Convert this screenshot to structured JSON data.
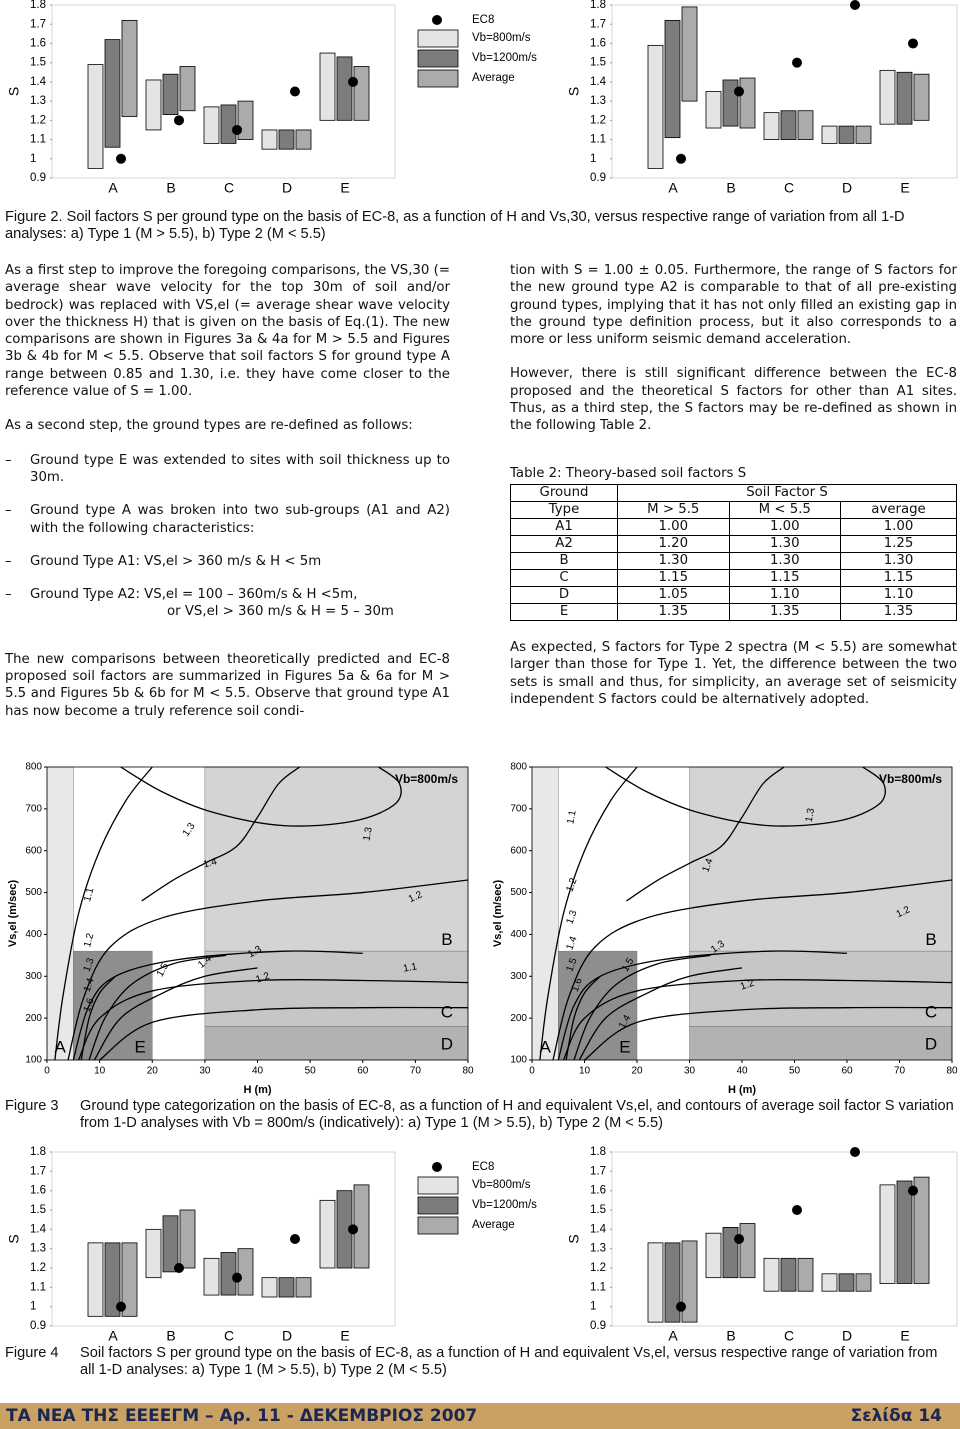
{
  "chart_data": [
    {
      "type": "range_bar",
      "ylabel": "S",
      "categories": [
        "A",
        "B",
        "C",
        "D",
        "E"
      ],
      "ylim": [
        0.9,
        1.8
      ],
      "yticks": [
        0.9,
        1,
        1.1,
        1.2,
        1.3,
        1.4,
        1.5,
        1.6,
        1.7,
        1.8
      ],
      "points": {
        "name": "EC8",
        "color": "#000000",
        "values": [
          1.0,
          1.2,
          1.15,
          1.35,
          1.4
        ]
      },
      "series": [
        {
          "name": "Vb=800m/s",
          "color": "#e4e4e4",
          "values": [
            [
              0.95,
              1.49
            ],
            [
              1.15,
              1.41
            ],
            [
              1.08,
              1.27
            ],
            [
              1.05,
              1.15
            ],
            [
              1.2,
              1.55
            ]
          ]
        },
        {
          "name": "Vb=1200m/s",
          "color": "#7c7c7c",
          "values": [
            [
              1.06,
              1.62
            ],
            [
              1.23,
              1.44
            ],
            [
              1.08,
              1.28
            ],
            [
              1.05,
              1.15
            ],
            [
              1.2,
              1.53
            ]
          ]
        },
        {
          "name": "Average",
          "color": "#ababab",
          "values": [
            [
              1.22,
              1.72
            ],
            [
              1.25,
              1.48
            ],
            [
              1.1,
              1.3
            ],
            [
              1.05,
              1.15
            ],
            [
              1.2,
              1.48
            ]
          ]
        }
      ]
    },
    {
      "type": "range_bar",
      "ylabel": "S",
      "categories": [
        "A",
        "B",
        "C",
        "D",
        "E"
      ],
      "ylim": [
        0.9,
        1.8
      ],
      "yticks": [
        0.9,
        1,
        1.1,
        1.2,
        1.3,
        1.4,
        1.5,
        1.6,
        1.7,
        1.8
      ],
      "points": {
        "color": "#000000",
        "values": [
          1.0,
          1.35,
          1.5,
          1.8,
          1.6
        ]
      },
      "series": [
        {
          "color": "#e4e4e4",
          "values": [
            [
              0.95,
              1.59
            ],
            [
              1.16,
              1.35
            ],
            [
              1.1,
              1.24
            ],
            [
              1.08,
              1.17
            ],
            [
              1.18,
              1.46
            ]
          ]
        },
        {
          "color": "#7c7c7c",
          "values": [
            [
              1.11,
              1.72
            ],
            [
              1.17,
              1.41
            ],
            [
              1.1,
              1.25
            ],
            [
              1.08,
              1.17
            ],
            [
              1.18,
              1.45
            ]
          ]
        },
        {
          "color": "#ababab",
          "values": [
            [
              1.3,
              1.79
            ],
            [
              1.16,
              1.42
            ],
            [
              1.1,
              1.25
            ],
            [
              1.08,
              1.17
            ],
            [
              1.2,
              1.44
            ]
          ]
        }
      ]
    },
    {
      "type": "contour",
      "xlabel": "H (m)",
      "ylabel": "Vs,el (m/sec)",
      "annotation": "Vb=800m/s",
      "xlim": [
        0,
        80
      ],
      "ylim": [
        100,
        800
      ],
      "xticks": [
        0,
        10,
        20,
        30,
        40,
        50,
        60,
        70,
        80
      ],
      "yticks": [
        100,
        200,
        300,
        400,
        500,
        600,
        700,
        800
      ],
      "regions": [
        {
          "label": "A",
          "x": [
            0,
            5
          ],
          "y": [
            100,
            800
          ],
          "color": "#e8e8e8"
        },
        {
          "label": "E",
          "x": [
            5,
            20
          ],
          "y": [
            100,
            360
          ],
          "color": "#8e8e8e"
        },
        {
          "label": "B",
          "x": [
            30,
            80
          ],
          "y": [
            360,
            800
          ],
          "color": "#d4d4d4"
        },
        {
          "label": "C",
          "x": [
            30,
            80
          ],
          "y": [
            180,
            360
          ],
          "color": "#c6c6c6"
        },
        {
          "label": "D",
          "x": [
            30,
            80
          ],
          "y": [
            100,
            180
          ],
          "color": "#b2b2b2"
        }
      ],
      "contour_labels": [
        1.3,
        1.3,
        1.4,
        1.1,
        1.2,
        1.3,
        1.4,
        1.6,
        1.5,
        1.4,
        1.3,
        1.2,
        1.2,
        1.1
      ]
    },
    {
      "type": "contour",
      "xlabel": "H (m)",
      "ylabel": "Vs,el (m/sec)",
      "annotation": "Vb=800m/s",
      "xlim": [
        0,
        80
      ],
      "ylim": [
        100,
        800
      ],
      "xticks": [
        0,
        10,
        20,
        30,
        40,
        50,
        60,
        70,
        80
      ],
      "yticks": [
        100,
        200,
        300,
        400,
        500,
        600,
        700,
        800
      ],
      "regions": [
        {
          "label": "A",
          "x": [
            0,
            5
          ],
          "y": [
            100,
            800
          ],
          "color": "#e8e8e8"
        },
        {
          "label": "E",
          "x": [
            5,
            20
          ],
          "y": [
            100,
            360
          ],
          "color": "#8e8e8e"
        },
        {
          "label": "B",
          "x": [
            30,
            80
          ],
          "y": [
            360,
            800
          ],
          "color": "#d4d4d4"
        },
        {
          "label": "C",
          "x": [
            30,
            80
          ],
          "y": [
            180,
            360
          ],
          "color": "#c6c6c6"
        },
        {
          "label": "D",
          "x": [
            30,
            80
          ],
          "y": [
            100,
            180
          ],
          "color": "#b2b2b2"
        }
      ],
      "contour_labels": [
        1.1,
        1.3,
        1.4,
        1.2,
        1.3,
        1.4,
        1.5,
        1.6,
        1.5,
        1.4,
        1.3,
        1.2,
        1.2
      ]
    },
    {
      "type": "range_bar",
      "ylabel": "S",
      "categories": [
        "A",
        "B",
        "C",
        "D",
        "E"
      ],
      "ylim": [
        0.9,
        1.8
      ],
      "yticks": [
        0.9,
        1,
        1.1,
        1.2,
        1.3,
        1.4,
        1.5,
        1.6,
        1.7,
        1.8
      ],
      "points": {
        "name": "EC8",
        "color": "#000000",
        "values": [
          1.0,
          1.2,
          1.15,
          1.35,
          1.4
        ]
      },
      "series": [
        {
          "name": "Vb=800m/s",
          "color": "#e4e4e4",
          "values": [
            [
              0.95,
              1.33
            ],
            [
              1.15,
              1.4
            ],
            [
              1.06,
              1.25
            ],
            [
              1.05,
              1.15
            ],
            [
              1.2,
              1.55
            ]
          ]
        },
        {
          "name": "Vb=1200m/s",
          "color": "#7c7c7c",
          "values": [
            [
              0.95,
              1.33
            ],
            [
              1.18,
              1.47
            ],
            [
              1.06,
              1.28
            ],
            [
              1.05,
              1.15
            ],
            [
              1.2,
              1.6
            ]
          ]
        },
        {
          "name": "Average",
          "color": "#ababab",
          "values": [
            [
              0.95,
              1.33
            ],
            [
              1.2,
              1.5
            ],
            [
              1.06,
              1.3
            ],
            [
              1.05,
              1.15
            ],
            [
              1.2,
              1.63
            ]
          ]
        }
      ]
    },
    {
      "type": "range_bar",
      "ylabel": "S",
      "categories": [
        "A",
        "B",
        "C",
        "D",
        "E"
      ],
      "ylim": [
        0.9,
        1.8
      ],
      "yticks": [
        0.9,
        1,
        1.1,
        1.2,
        1.3,
        1.4,
        1.5,
        1.6,
        1.7,
        1.8
      ],
      "points": {
        "color": "#000000",
        "values": [
          1.0,
          1.35,
          1.5,
          1.8,
          1.6
        ]
      },
      "series": [
        {
          "color": "#e4e4e4",
          "values": [
            [
              0.92,
              1.33
            ],
            [
              1.15,
              1.38
            ],
            [
              1.08,
              1.25
            ],
            [
              1.08,
              1.17
            ],
            [
              1.12,
              1.63
            ]
          ]
        },
        {
          "color": "#7c7c7c",
          "values": [
            [
              0.92,
              1.33
            ],
            [
              1.15,
              1.41
            ],
            [
              1.08,
              1.25
            ],
            [
              1.08,
              1.17
            ],
            [
              1.12,
              1.65
            ]
          ]
        },
        {
          "color": "#ababab",
          "values": [
            [
              0.92,
              1.34
            ],
            [
              1.15,
              1.43
            ],
            [
              1.08,
              1.25
            ],
            [
              1.08,
              1.17
            ],
            [
              1.12,
              1.67
            ]
          ]
        }
      ]
    }
  ],
  "figure2_caption": "Figure 2. Soil factors S per ground type on the basis of EC-8, as a function of H and Vs,30, versus respective range of variation from all 1-D analyses: a) Type 1 (M > 5.5), b) Type 2 (M < 5.5)",
  "body": {
    "left": {
      "intro": [
        "As a first step to improve the foregoing comparisons, the VS,30 (= average shear wave velocity for the top 30m of soil and/or bedrock) was replaced with VS,el (= average shear wave velocity over the thickness H) that is given on the basis of Eq.(1). The new comparisons are shown in Figures 3a & 4a for M > 5.5 and Figures 3b & 4b for M < 5.5. Observe that soil factors S for ground type A range between 0.85 and 1.30, i.e. they have come closer to the reference value of S = 1.00.",
        "As a second step, the ground types are re-defined as follows:"
      ],
      "list": [
        "Ground type E was extended to sites with soil thickness up to 30m.",
        "Ground type A was broken into two sub-groups (A1 and A2) with the following characteristics:",
        "Ground Type A1: VS,el > 360 m/s & H < 5m",
        [
          "Ground Type A2: VS,el = 100 – 360m/s & H <5m,",
          "or VS,el > 360 m/s & H = 5 – 30m"
        ]
      ],
      "outro": "The new comparisons between theoretically predicted and EC-8 proposed soil factors are summarized in Figures 5a & 6a for M > 5.5 and Figures 5b & 6b for M < 5.5. Observe that ground type A1 has now become a truly reference soil condi-"
    },
    "right": {
      "paragraphs": [
        "tion with S = 1.00 ± 0.05. Furthermore, the range of S factors for the new ground type A2 is comparable to that of all pre-existing ground types, implying that it has not only filled an existing gap in the ground type definition process, but it also corresponds to a more or less uniform seismic demand acceleration.",
        "However, there is still significant difference between the EC-8 proposed and the theoretical S factors for other than A1 sites. Thus, as a third step, the S factors may be re-defined as shown in the following Table 2."
      ],
      "closing": "As expected, S factors for Type 2 spectra (M < 5.5) are somewhat larger than those for Type 1. Yet, the difference between the two sets is small and thus, for simplicity, an average set of seismicity independent S factors could be alternatively adopted."
    }
  },
  "table": {
    "caption": "Table 2: Theory-based soil factors S",
    "header": [
      "Ground",
      "Soil Factor S"
    ],
    "subheader": [
      "Type",
      "M > 5.5",
      "M < 5.5",
      "average"
    ],
    "rows": [
      [
        "A1",
        "1.00",
        "1.00",
        "1.00"
      ],
      [
        "A2",
        "1.20",
        "1.30",
        "1.25"
      ],
      [
        "B",
        "1.30",
        "1.30",
        "1.30"
      ],
      [
        "C",
        "1.15",
        "1.15",
        "1.15"
      ],
      [
        "D",
        "1.05",
        "1.10",
        "1.10"
      ],
      [
        "E",
        "1.35",
        "1.35",
        "1.35"
      ]
    ]
  },
  "figure3_caption": {
    "label": "Figure 3",
    "text": "Ground type categorization on the basis of EC-8, as a function of H and equivalent Vs,el, and contours of average soil factor S variation from 1-D analyses with Vb = 800m/s (indicatively): a) Type 1 (M > 5.5), b) Type 2 (M < 5.5)"
  },
  "figure4_caption": {
    "label": "Figure 4",
    "text": "Soil factors S per ground type on the basis of EC-8, as a function of H and equivalent Vs,el, versus respective range of variation from all 1-D analyses: a) Type 1 (M > 5.5), b) Type 2 (M < 5.5)"
  },
  "footer": {
    "left": "ΤΑ ΝΕΑ ΤΗΣ ΕΕΕΕΓΜ – Αρ. 11 - ΔΕΚΕΜΒΡΙΟΣ 2007",
    "right": "Σελίδα 14"
  }
}
